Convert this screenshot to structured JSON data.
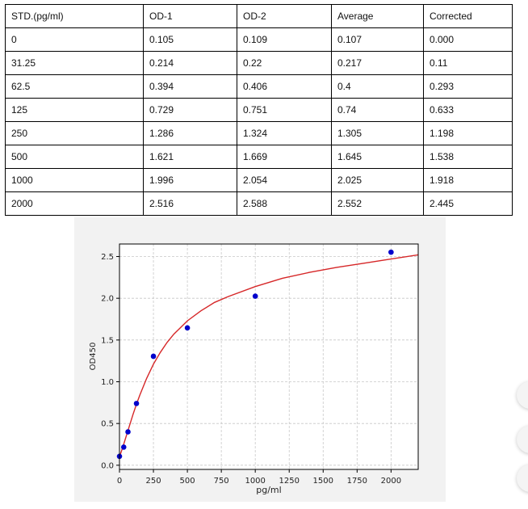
{
  "table": {
    "headers": [
      "STD.(pg/ml)",
      "OD-1",
      "OD-2",
      "Average",
      "Corrected"
    ],
    "rows": [
      [
        "0",
        "0.105",
        "0.109",
        "0.107",
        "0.000"
      ],
      [
        "31.25",
        "0.214",
        "0.22",
        "0.217",
        "0.11"
      ],
      [
        "62.5",
        "0.394",
        "0.406",
        "0.4",
        "0.293"
      ],
      [
        "125",
        "0.729",
        "0.751",
        "0.74",
        "0.633"
      ],
      [
        "250",
        "1.286",
        "1.324",
        "1.305",
        "1.198"
      ],
      [
        "500",
        "1.621",
        "1.669",
        "1.645",
        "1.538"
      ],
      [
        "1000",
        "1.996",
        "2.054",
        "2.025",
        "1.918"
      ],
      [
        "2000",
        "2.516",
        "2.588",
        "2.552",
        "2.445"
      ]
    ]
  },
  "chart_data": {
    "type": "scatter",
    "title": "",
    "xlabel": "pg/ml",
    "ylabel": "OD450",
    "xlim": [
      0,
      2200
    ],
    "ylim": [
      -0.05,
      2.65
    ],
    "xticks": [
      0,
      250,
      500,
      750,
      1000,
      1250,
      1500,
      1750,
      2000
    ],
    "yticks": [
      0.0,
      0.5,
      1.0,
      1.5,
      2.0,
      2.5
    ],
    "xtick_labels": [
      "0",
      "250",
      "500",
      "750",
      "1000",
      "1250",
      "1500",
      "1750",
      "2000"
    ],
    "ytick_labels": [
      "0.0",
      "0.5",
      "1.0",
      "1.5",
      "2.0",
      "2.5"
    ],
    "grid": true,
    "series": [
      {
        "kind": "points",
        "x": [
          0,
          31.25,
          62.5,
          125,
          250,
          500,
          1000,
          2000
        ],
        "y": [
          0.107,
          0.217,
          0.4,
          0.74,
          1.305,
          1.645,
          2.025,
          2.552
        ],
        "color": "#0000cc"
      },
      {
        "kind": "fit-curve",
        "x": [
          0,
          25,
          50,
          75,
          100,
          125,
          150,
          200,
          250,
          300,
          350,
          400,
          500,
          600,
          700,
          800,
          1000,
          1200,
          1400,
          1600,
          1800,
          2000,
          2200
        ],
        "y": [
          0.1,
          0.22,
          0.35,
          0.48,
          0.61,
          0.73,
          0.84,
          1.04,
          1.21,
          1.35,
          1.47,
          1.57,
          1.73,
          1.85,
          1.95,
          2.02,
          2.14,
          2.24,
          2.31,
          2.37,
          2.42,
          2.47,
          2.52
        ],
        "color": "#d62728"
      }
    ]
  }
}
